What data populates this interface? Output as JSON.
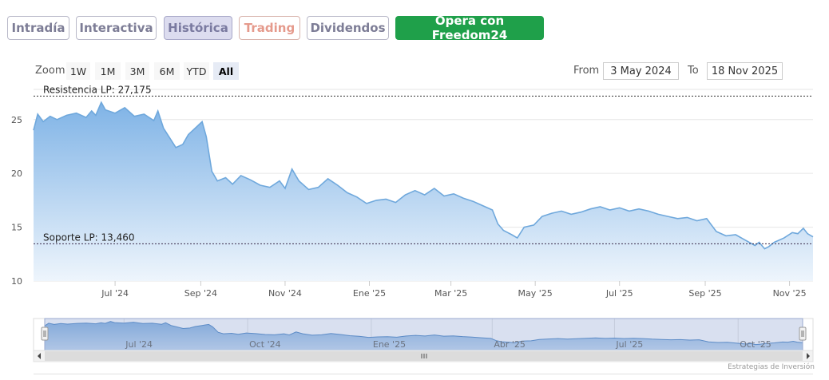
{
  "tabs": [
    {
      "label": "Intradía",
      "state": "default"
    },
    {
      "label": "Interactiva",
      "state": "default"
    },
    {
      "label": "Histórica",
      "state": "active"
    },
    {
      "label": "Trading",
      "state": "accent"
    },
    {
      "label": "Dividendos",
      "state": "default"
    },
    {
      "label": "Opera con Freedom24",
      "state": "cta"
    }
  ],
  "zoom": {
    "label": "Zoom",
    "buttons": [
      "1W",
      "1M",
      "3M",
      "6M",
      "YTD",
      "All"
    ],
    "selected": "All"
  },
  "range": {
    "from_label": "From",
    "from_value": "3 May 2024",
    "to_label": "To",
    "to_value": "18 Nov 2025"
  },
  "credit": "Estrategias de Inversión",
  "colors": {
    "line": "#6fa8dc",
    "area_top": "#7fb3e6",
    "area_bottom": "#eef5fc",
    "resistance": "#333333",
    "support": "#3a2a4a",
    "cta": "#1fa04a"
  },
  "chart_data": {
    "type": "area",
    "x_start": "2024-05-03",
    "x_end": "2025-11-18",
    "ylim": [
      10,
      27.8
    ],
    "yticks": [
      10,
      15,
      20,
      25
    ],
    "xticks": [
      {
        "label": "Jul '24",
        "date": "2024-07-01"
      },
      {
        "label": "Sep '24",
        "date": "2024-09-01"
      },
      {
        "label": "Nov '24",
        "date": "2024-11-01"
      },
      {
        "label": "Ene '25",
        "date": "2025-01-01"
      },
      {
        "label": "Mar '25",
        "date": "2025-03-01"
      },
      {
        "label": "May '25",
        "date": "2025-05-01"
      },
      {
        "label": "Jul '25",
        "date": "2025-07-01"
      },
      {
        "label": "Sep '25",
        "date": "2025-09-01"
      },
      {
        "label": "Nov '25",
        "date": "2025-11-01"
      }
    ],
    "grid": true,
    "levels": [
      {
        "label": "Resistencia LP: 27,175",
        "value": 27.175
      },
      {
        "label": "Soporte LP: 13,460",
        "value": 13.46
      }
    ],
    "series": [
      {
        "points": [
          [
            "2024-05-03",
            24.0
          ],
          [
            "2024-05-06",
            25.5
          ],
          [
            "2024-05-10",
            24.8
          ],
          [
            "2024-05-15",
            25.3
          ],
          [
            "2024-05-20",
            25.0
          ],
          [
            "2024-05-27",
            25.4
          ],
          [
            "2024-06-03",
            25.6
          ],
          [
            "2024-06-10",
            25.2
          ],
          [
            "2024-06-14",
            25.8
          ],
          [
            "2024-06-17",
            25.4
          ],
          [
            "2024-06-21",
            26.6
          ],
          [
            "2024-06-24",
            25.9
          ],
          [
            "2024-07-01",
            25.6
          ],
          [
            "2024-07-08",
            26.1
          ],
          [
            "2024-07-15",
            25.3
          ],
          [
            "2024-07-22",
            25.5
          ],
          [
            "2024-07-29",
            24.9
          ],
          [
            "2024-08-01",
            25.8
          ],
          [
            "2024-08-05",
            24.2
          ],
          [
            "2024-08-09",
            23.4
          ],
          [
            "2024-08-14",
            22.4
          ],
          [
            "2024-08-19",
            22.7
          ],
          [
            "2024-08-23",
            23.6
          ],
          [
            "2024-08-28",
            24.2
          ],
          [
            "2024-09-02",
            24.8
          ],
          [
            "2024-09-05",
            23.4
          ],
          [
            "2024-09-09",
            20.2
          ],
          [
            "2024-09-13",
            19.3
          ],
          [
            "2024-09-19",
            19.6
          ],
          [
            "2024-09-24",
            19.0
          ],
          [
            "2024-09-30",
            19.8
          ],
          [
            "2024-10-07",
            19.4
          ],
          [
            "2024-10-14",
            18.9
          ],
          [
            "2024-10-21",
            18.7
          ],
          [
            "2024-10-28",
            19.3
          ],
          [
            "2024-11-01",
            18.6
          ],
          [
            "2024-11-06",
            20.4
          ],
          [
            "2024-11-11",
            19.3
          ],
          [
            "2024-11-18",
            18.5
          ],
          [
            "2024-11-25",
            18.7
          ],
          [
            "2024-12-02",
            19.5
          ],
          [
            "2024-12-09",
            18.9
          ],
          [
            "2024-12-16",
            18.2
          ],
          [
            "2024-12-23",
            17.8
          ],
          [
            "2024-12-30",
            17.2
          ],
          [
            "2025-01-06",
            17.5
          ],
          [
            "2025-01-13",
            17.6
          ],
          [
            "2025-01-20",
            17.3
          ],
          [
            "2025-01-27",
            18.0
          ],
          [
            "2025-02-03",
            18.4
          ],
          [
            "2025-02-10",
            18.0
          ],
          [
            "2025-02-17",
            18.6
          ],
          [
            "2025-02-24",
            17.9
          ],
          [
            "2025-03-03",
            18.1
          ],
          [
            "2025-03-10",
            17.7
          ],
          [
            "2025-03-17",
            17.4
          ],
          [
            "2025-03-24",
            17.0
          ],
          [
            "2025-03-31",
            16.6
          ],
          [
            "2025-04-04",
            15.3
          ],
          [
            "2025-04-08",
            14.7
          ],
          [
            "2025-04-14",
            14.3
          ],
          [
            "2025-04-18",
            14.0
          ],
          [
            "2025-04-23",
            15.0
          ],
          [
            "2025-04-30",
            15.2
          ],
          [
            "2025-05-06",
            16.0
          ],
          [
            "2025-05-13",
            16.3
          ],
          [
            "2025-05-20",
            16.5
          ],
          [
            "2025-05-27",
            16.2
          ],
          [
            "2025-06-03",
            16.4
          ],
          [
            "2025-06-10",
            16.7
          ],
          [
            "2025-06-17",
            16.9
          ],
          [
            "2025-06-24",
            16.6
          ],
          [
            "2025-07-01",
            16.8
          ],
          [
            "2025-07-08",
            16.5
          ],
          [
            "2025-07-15",
            16.7
          ],
          [
            "2025-07-22",
            16.5
          ],
          [
            "2025-07-29",
            16.2
          ],
          [
            "2025-08-05",
            16.0
          ],
          [
            "2025-08-12",
            15.8
          ],
          [
            "2025-08-19",
            15.9
          ],
          [
            "2025-08-26",
            15.6
          ],
          [
            "2025-09-02",
            15.8
          ],
          [
            "2025-09-09",
            14.6
          ],
          [
            "2025-09-16",
            14.2
          ],
          [
            "2025-09-23",
            14.3
          ],
          [
            "2025-09-30",
            13.8
          ],
          [
            "2025-10-07",
            13.3
          ],
          [
            "2025-10-10",
            13.6
          ],
          [
            "2025-10-14",
            13.0
          ],
          [
            "2025-10-17",
            13.2
          ],
          [
            "2025-10-21",
            13.6
          ],
          [
            "2025-10-28",
            14.0
          ],
          [
            "2025-11-03",
            14.5
          ],
          [
            "2025-11-07",
            14.4
          ],
          [
            "2025-11-11",
            14.9
          ],
          [
            "2025-11-14",
            14.4
          ],
          [
            "2025-11-18",
            14.1
          ]
        ]
      }
    ],
    "navigator": {
      "xticks": [
        {
          "label": "Jul '24",
          "date": "2024-07-01"
        },
        {
          "label": "Oct '24",
          "date": "2024-10-01"
        },
        {
          "label": "Ene '25",
          "date": "2025-01-01"
        },
        {
          "label": "Abr '25",
          "date": "2025-04-01"
        },
        {
          "label": "Jul '25",
          "date": "2025-07-01"
        },
        {
          "label": "Oct '25",
          "date": "2025-10-01"
        }
      ]
    }
  }
}
